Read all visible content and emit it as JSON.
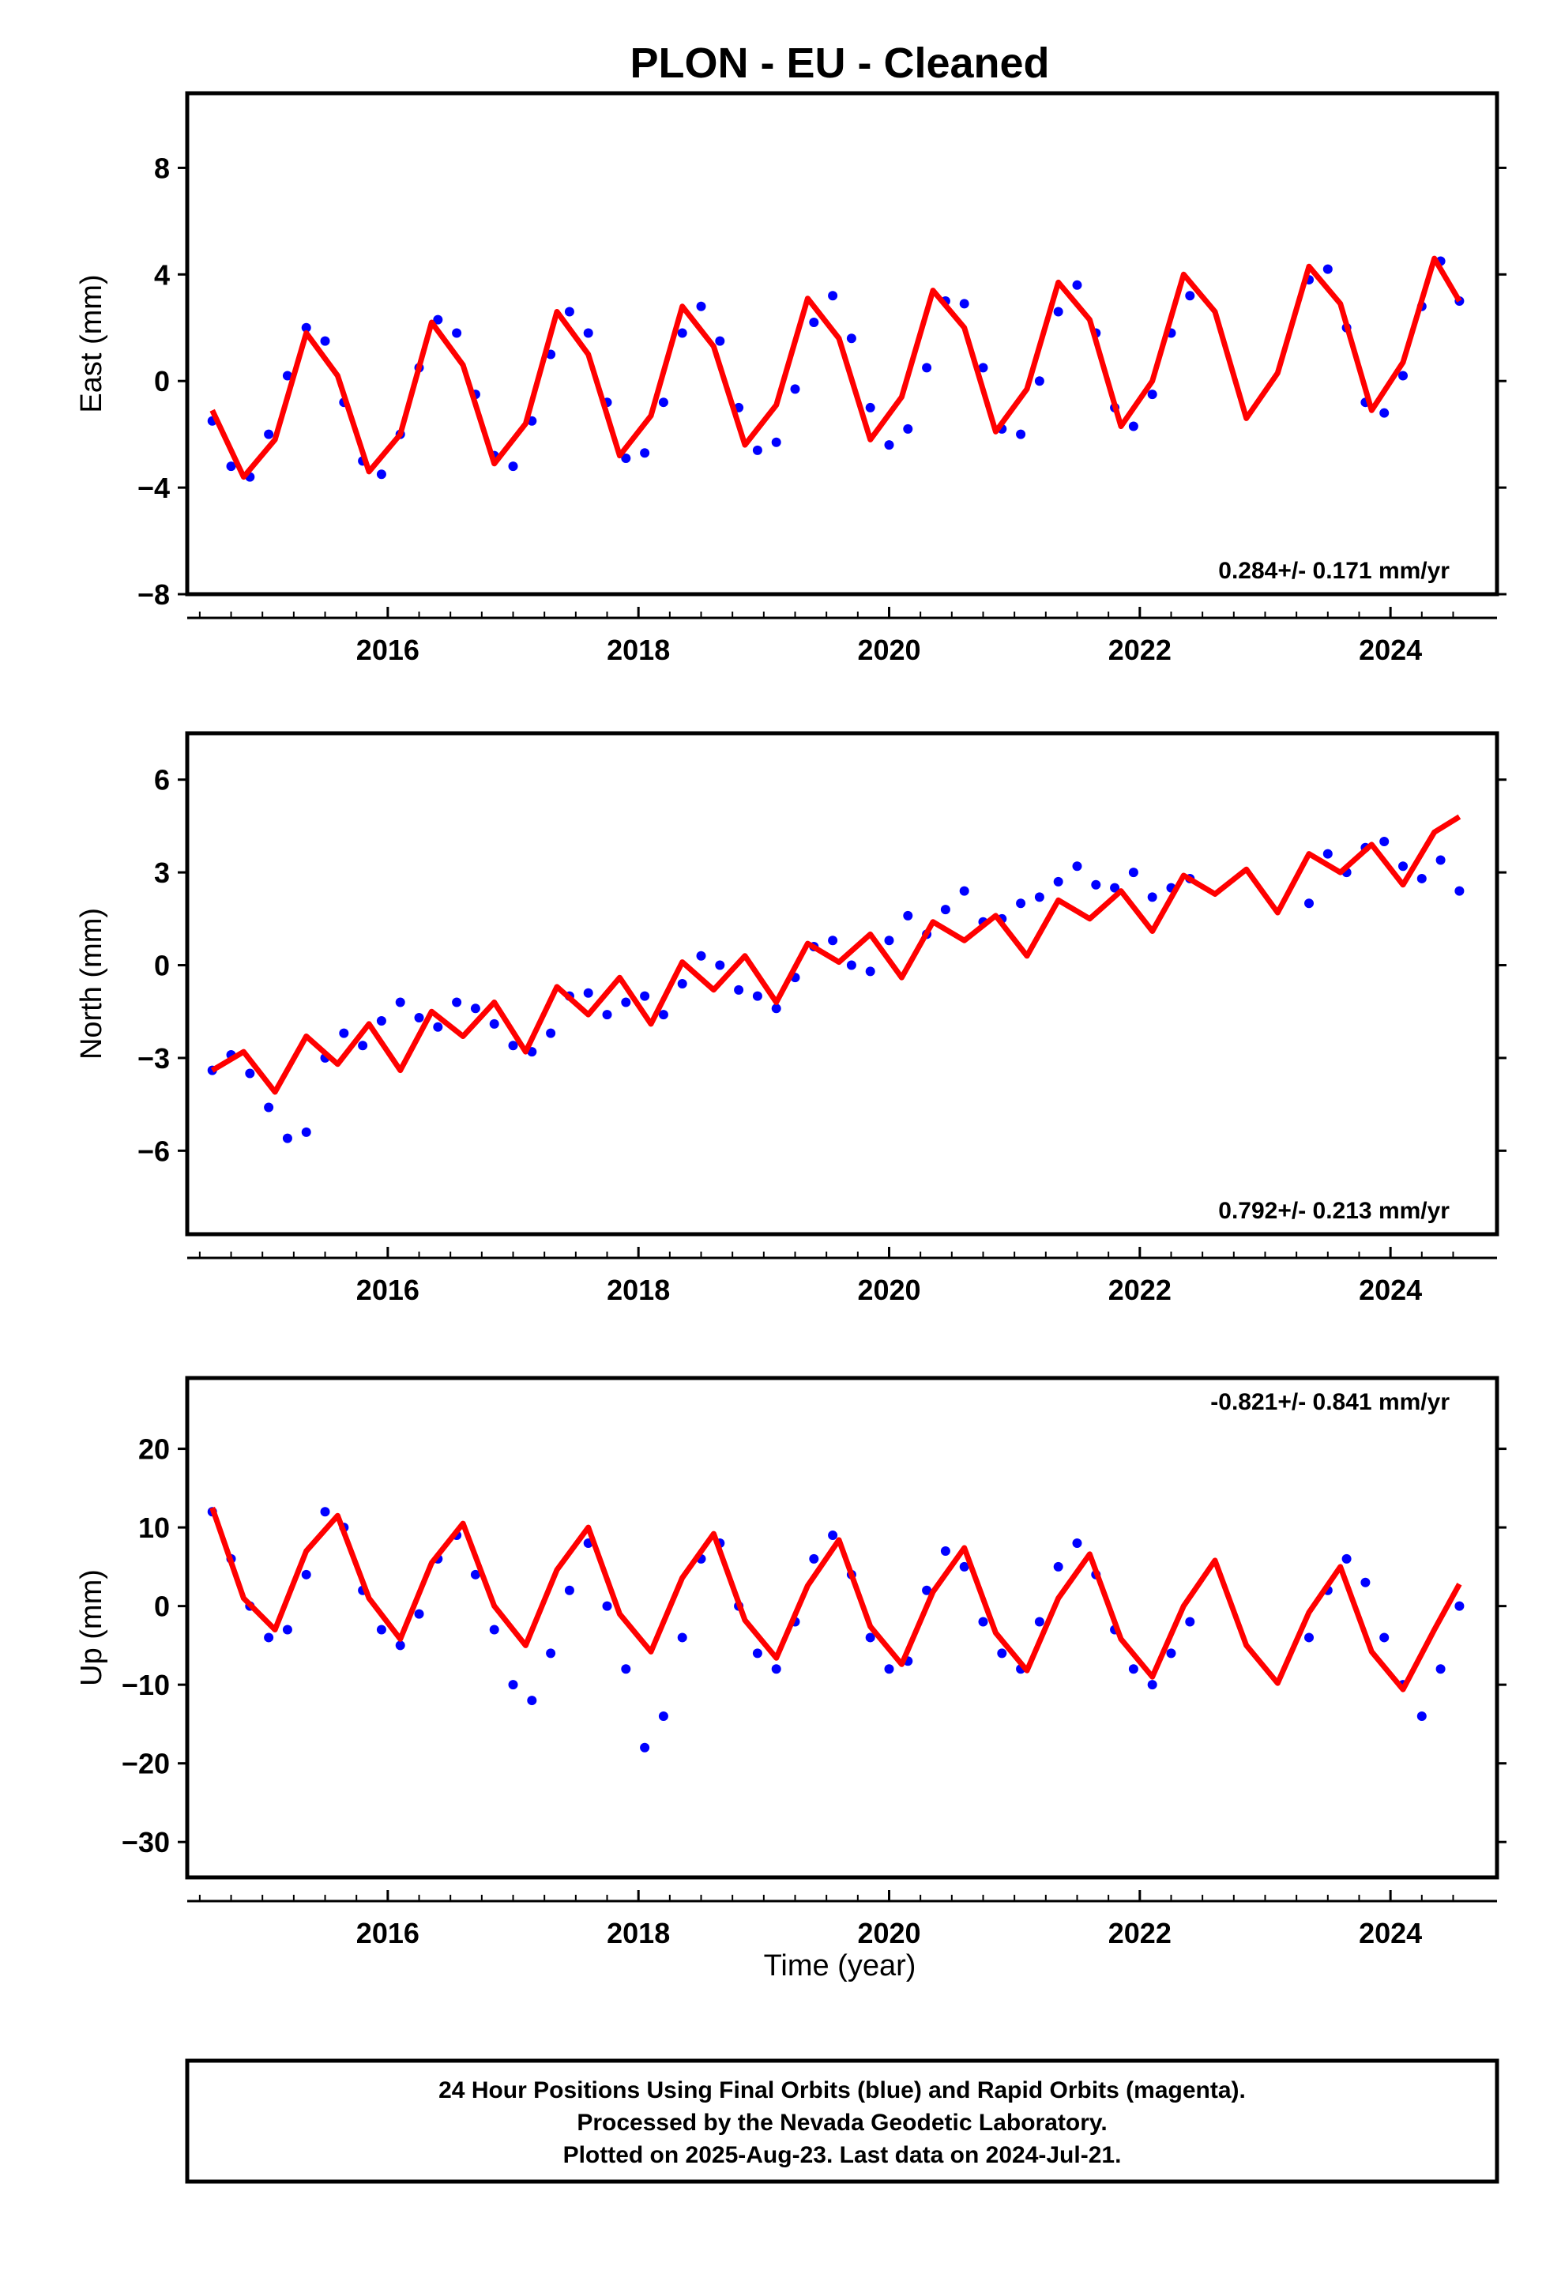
{
  "title": "PLON  - EU - Cleaned",
  "colors": {
    "data": "#0000ff",
    "model": "#ff0000",
    "axis": "#000000"
  },
  "xaxis_label": "Time (year)",
  "footer": {
    "line1": "24 Hour Positions Using Final Orbits (blue) and Rapid Orbits (magenta).",
    "line2": "Processed by the Nevada Geodetic Laboratory.",
    "line3": "Plotted on 2025-Aug-23. Last data on 2024-Jul-21."
  },
  "chart_data": [
    {
      "type": "scatter",
      "panel": "east",
      "ylabel": "East (mm)",
      "xlim": [
        2014.4,
        2024.85
      ],
      "ylim": [
        -8,
        10.8
      ],
      "xticks": [
        2016,
        2018,
        2020,
        2022,
        2024
      ],
      "yticks": [
        -8,
        -4,
        0,
        4,
        8
      ],
      "rate_label": "0.284+/- 0.171 mm/yr",
      "rate_position": "bottom-right",
      "series": [
        {
          "kind": "points",
          "x": [
            2014.6,
            2014.75,
            2014.9,
            2015.05,
            2015.2,
            2015.35,
            2015.5,
            2015.65,
            2015.8,
            2015.95,
            2016.1,
            2016.25,
            2016.4,
            2016.55,
            2016.7,
            2016.85,
            2017.0,
            2017.15,
            2017.3,
            2017.45,
            2017.6,
            2017.75,
            2017.9,
            2018.05,
            2018.2,
            2018.35,
            2018.5,
            2018.65,
            2018.8,
            2018.95,
            2019.1,
            2019.25,
            2019.4,
            2019.55,
            2019.7,
            2019.85,
            2020.0,
            2020.15,
            2020.3,
            2020.45,
            2020.6,
            2020.75,
            2020.9,
            2021.05,
            2021.2,
            2021.35,
            2021.5,
            2021.65,
            2021.8,
            2021.95,
            2022.1,
            2022.25,
            2022.4,
            2023.35,
            2023.5,
            2023.65,
            2023.8,
            2023.95,
            2024.1,
            2024.25,
            2024.4,
            2024.55
          ],
          "y": [
            -1.5,
            -3.2,
            -3.6,
            -2.0,
            0.2,
            2.0,
            1.5,
            -0.8,
            -3.0,
            -3.5,
            -2.0,
            0.5,
            2.3,
            1.8,
            -0.5,
            -2.8,
            -3.2,
            -1.5,
            1.0,
            2.6,
            1.8,
            -0.8,
            -2.9,
            -2.7,
            -0.8,
            1.8,
            2.8,
            1.5,
            -1.0,
            -2.6,
            -2.3,
            -0.3,
            2.2,
            3.2,
            1.6,
            -1.0,
            -2.4,
            -1.8,
            0.5,
            3.0,
            2.9,
            0.5,
            -1.8,
            -2.0,
            0.0,
            2.6,
            3.6,
            1.8,
            -1.0,
            -1.7,
            -0.5,
            1.8,
            3.2,
            3.8,
            4.2,
            2.0,
            -0.8,
            -1.2,
            0.2,
            2.8,
            4.5,
            3.0
          ]
        },
        {
          "kind": "model",
          "x": [
            2014.6,
            2014.85,
            2015.1,
            2015.35,
            2015.6,
            2015.85,
            2016.1,
            2016.35,
            2016.6,
            2016.85,
            2017.1,
            2017.35,
            2017.6,
            2017.85,
            2018.1,
            2018.35,
            2018.6,
            2018.85,
            2019.1,
            2019.35,
            2019.6,
            2019.85,
            2020.1,
            2020.35,
            2020.6,
            2020.85,
            2021.1,
            2021.35,
            2021.6,
            2021.85,
            2022.1,
            2022.35,
            2022.6,
            2022.85,
            2023.1,
            2023.35,
            2023.6,
            2023.85,
            2024.1,
            2024.35,
            2024.55
          ],
          "y": [
            -1.1,
            -3.6,
            -2.2,
            1.8,
            0.2,
            -3.4,
            -2.0,
            2.2,
            0.6,
            -3.1,
            -1.6,
            2.6,
            1.0,
            -2.8,
            -1.3,
            2.8,
            1.3,
            -2.4,
            -0.9,
            3.1,
            1.6,
            -2.2,
            -0.6,
            3.4,
            2.0,
            -1.9,
            -0.3,
            3.7,
            2.3,
            -1.7,
            0.0,
            4.0,
            2.6,
            -1.4,
            0.3,
            4.3,
            2.9,
            -1.1,
            0.7,
            4.6,
            3.0
          ]
        }
      ]
    },
    {
      "type": "scatter",
      "panel": "north",
      "ylabel": "North (mm)",
      "xlim": [
        2014.4,
        2024.85
      ],
      "ylim": [
        -8.7,
        7.5
      ],
      "xticks": [
        2016,
        2018,
        2020,
        2022,
        2024
      ],
      "yticks": [
        -6,
        -3,
        0,
        3,
        6
      ],
      "rate_label": "0.792+/- 0.213 mm/yr",
      "rate_position": "bottom-right",
      "series": [
        {
          "kind": "points",
          "x": [
            2014.6,
            2014.75,
            2014.9,
            2015.05,
            2015.2,
            2015.35,
            2015.5,
            2015.65,
            2015.8,
            2015.95,
            2016.1,
            2016.25,
            2016.4,
            2016.55,
            2016.7,
            2016.85,
            2017.0,
            2017.15,
            2017.3,
            2017.45,
            2017.6,
            2017.75,
            2017.9,
            2018.05,
            2018.2,
            2018.35,
            2018.5,
            2018.65,
            2018.8,
            2018.95,
            2019.1,
            2019.25,
            2019.4,
            2019.55,
            2019.7,
            2019.85,
            2020.0,
            2020.15,
            2020.3,
            2020.45,
            2020.6,
            2020.75,
            2020.9,
            2021.05,
            2021.2,
            2021.35,
            2021.5,
            2021.65,
            2021.8,
            2021.95,
            2022.1,
            2022.25,
            2022.4,
            2023.35,
            2023.5,
            2023.65,
            2023.8,
            2023.95,
            2024.1,
            2024.25,
            2024.4,
            2024.55
          ],
          "y": [
            -3.4,
            -2.9,
            -3.5,
            -4.6,
            -5.6,
            -5.4,
            -3.0,
            -2.2,
            -2.6,
            -1.8,
            -1.2,
            -1.7,
            -2.0,
            -1.2,
            -1.4,
            -1.9,
            -2.6,
            -2.8,
            -2.2,
            -1.0,
            -0.9,
            -1.6,
            -1.2,
            -1.0,
            -1.6,
            -0.6,
            0.3,
            0.0,
            -0.8,
            -1.0,
            -1.4,
            -0.4,
            0.6,
            0.8,
            0.0,
            -0.2,
            0.8,
            1.6,
            1.0,
            1.8,
            2.4,
            1.4,
            1.5,
            2.0,
            2.2,
            2.7,
            3.2,
            2.6,
            2.5,
            3.0,
            2.2,
            2.5,
            2.8,
            2.0,
            3.6,
            3.0,
            3.8,
            4.0,
            3.2,
            2.8,
            3.4,
            2.4
          ]
        },
        {
          "kind": "model",
          "x": [
            2014.6,
            2014.85,
            2015.1,
            2015.35,
            2015.6,
            2015.85,
            2016.1,
            2016.35,
            2016.6,
            2016.85,
            2017.1,
            2017.35,
            2017.6,
            2017.85,
            2018.1,
            2018.35,
            2018.6,
            2018.85,
            2019.1,
            2019.35,
            2019.6,
            2019.85,
            2020.1,
            2020.35,
            2020.6,
            2020.85,
            2021.1,
            2021.35,
            2021.6,
            2021.85,
            2022.1,
            2022.35,
            2022.6,
            2022.85,
            2023.1,
            2023.35,
            2023.6,
            2023.85,
            2024.1,
            2024.35,
            2024.55
          ],
          "y": [
            -3.4,
            -2.8,
            -4.1,
            -2.3,
            -3.2,
            -1.9,
            -3.4,
            -1.5,
            -2.3,
            -1.2,
            -2.8,
            -0.7,
            -1.6,
            -0.4,
            -1.9,
            0.1,
            -0.8,
            0.3,
            -1.2,
            0.7,
            0.1,
            1.0,
            -0.4,
            1.4,
            0.8,
            1.6,
            0.3,
            2.1,
            1.5,
            2.4,
            1.1,
            2.9,
            2.3,
            3.1,
            1.7,
            3.6,
            3.0,
            3.9,
            2.6,
            4.3,
            4.8
          ]
        }
      ]
    },
    {
      "type": "scatter",
      "panel": "up",
      "ylabel": "Up (mm)",
      "xlim": [
        2014.4,
        2024.85
      ],
      "ylim": [
        -34.5,
        29
      ],
      "xticks": [
        2016,
        2018,
        2020,
        2022,
        2024
      ],
      "yticks": [
        -30,
        -20,
        -10,
        0,
        10,
        20
      ],
      "rate_label": "-0.821+/- 0.841 mm/yr",
      "rate_position": "top-right",
      "series": [
        {
          "kind": "points",
          "x": [
            2014.6,
            2014.75,
            2014.9,
            2015.05,
            2015.2,
            2015.35,
            2015.5,
            2015.65,
            2015.8,
            2015.95,
            2016.1,
            2016.25,
            2016.4,
            2016.55,
            2016.7,
            2016.85,
            2017.0,
            2017.15,
            2017.3,
            2017.45,
            2017.6,
            2017.75,
            2017.9,
            2018.05,
            2018.2,
            2018.35,
            2018.5,
            2018.65,
            2018.8,
            2018.95,
            2019.1,
            2019.25,
            2019.4,
            2019.55,
            2019.7,
            2019.85,
            2020.0,
            2020.15,
            2020.3,
            2020.45,
            2020.6,
            2020.75,
            2020.9,
            2021.05,
            2021.2,
            2021.35,
            2021.5,
            2021.65,
            2021.8,
            2021.95,
            2022.1,
            2022.25,
            2022.4,
            2023.35,
            2023.5,
            2023.65,
            2023.8,
            2023.95,
            2024.1,
            2024.25,
            2024.4,
            2024.55
          ],
          "y": [
            12,
            6,
            0,
            -4,
            -3,
            4,
            12,
            10,
            2,
            -3,
            -5,
            -1,
            6,
            9,
            4,
            -3,
            -10,
            -12,
            -6,
            2,
            8,
            0,
            -8,
            -18,
            -14,
            -4,
            6,
            8,
            0,
            -6,
            -8,
            -2,
            6,
            9,
            4,
            -4,
            -8,
            -7,
            2,
            7,
            5,
            -2,
            -6,
            -8,
            -2,
            5,
            8,
            4,
            -3,
            -8,
            -10,
            -6,
            -2,
            -4,
            2,
            6,
            3,
            -4,
            -10,
            -14,
            -8,
            0
          ]
        },
        {
          "kind": "model",
          "x": [
            2014.6,
            2014.85,
            2015.1,
            2015.35,
            2015.6,
            2015.85,
            2016.1,
            2016.35,
            2016.6,
            2016.85,
            2017.1,
            2017.35,
            2017.6,
            2017.85,
            2018.1,
            2018.35,
            2018.6,
            2018.85,
            2019.1,
            2019.35,
            2019.6,
            2019.85,
            2020.1,
            2020.35,
            2020.6,
            2020.85,
            2021.1,
            2021.35,
            2021.6,
            2021.85,
            2022.1,
            2022.35,
            2022.6,
            2022.85,
            2023.1,
            2023.35,
            2023.6,
            2023.85,
            2024.1,
            2024.35,
            2024.55
          ],
          "y": [
            12.5,
            1.0,
            -3.0,
            7.0,
            11.5,
            1.0,
            -4.2,
            5.5,
            10.5,
            0.0,
            -5.0,
            4.6,
            10.0,
            -1.0,
            -5.8,
            3.6,
            9.2,
            -1.8,
            -6.6,
            2.6,
            8.4,
            -2.6,
            -7.4,
            1.8,
            7.4,
            -3.4,
            -8.2,
            1.0,
            6.6,
            -4.2,
            -9.0,
            0.0,
            5.8,
            -5.0,
            -9.8,
            -0.8,
            5.0,
            -5.8,
            -10.6,
            -3.0,
            2.8
          ]
        }
      ]
    }
  ]
}
